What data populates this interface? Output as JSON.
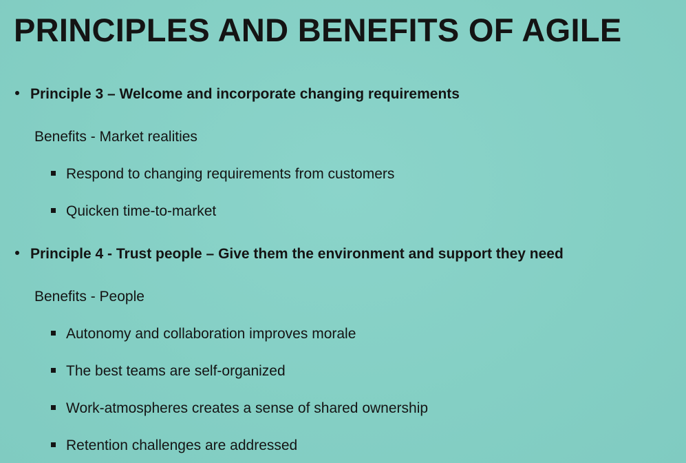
{
  "slide": {
    "title": "PRINCIPLES AND BENEFITS OF AGILE",
    "sections": [
      {
        "principle": "Principle 3 – Welcome and incorporate changing requirements",
        "benefit_heading": "Benefits - Market realities",
        "points": [
          "Respond to changing requirements from customers",
          "Quicken time-to-market"
        ]
      },
      {
        "principle": "Principle 4 - Trust people – Give them the environment and support they need",
        "benefit_heading": "Benefits - People",
        "points": [
          "Autonomy and collaboration improves morale",
          "The best teams are self-organized",
          "Work-atmospheres creates a sense of shared ownership",
          "Retention challenges are addressed"
        ]
      }
    ]
  }
}
